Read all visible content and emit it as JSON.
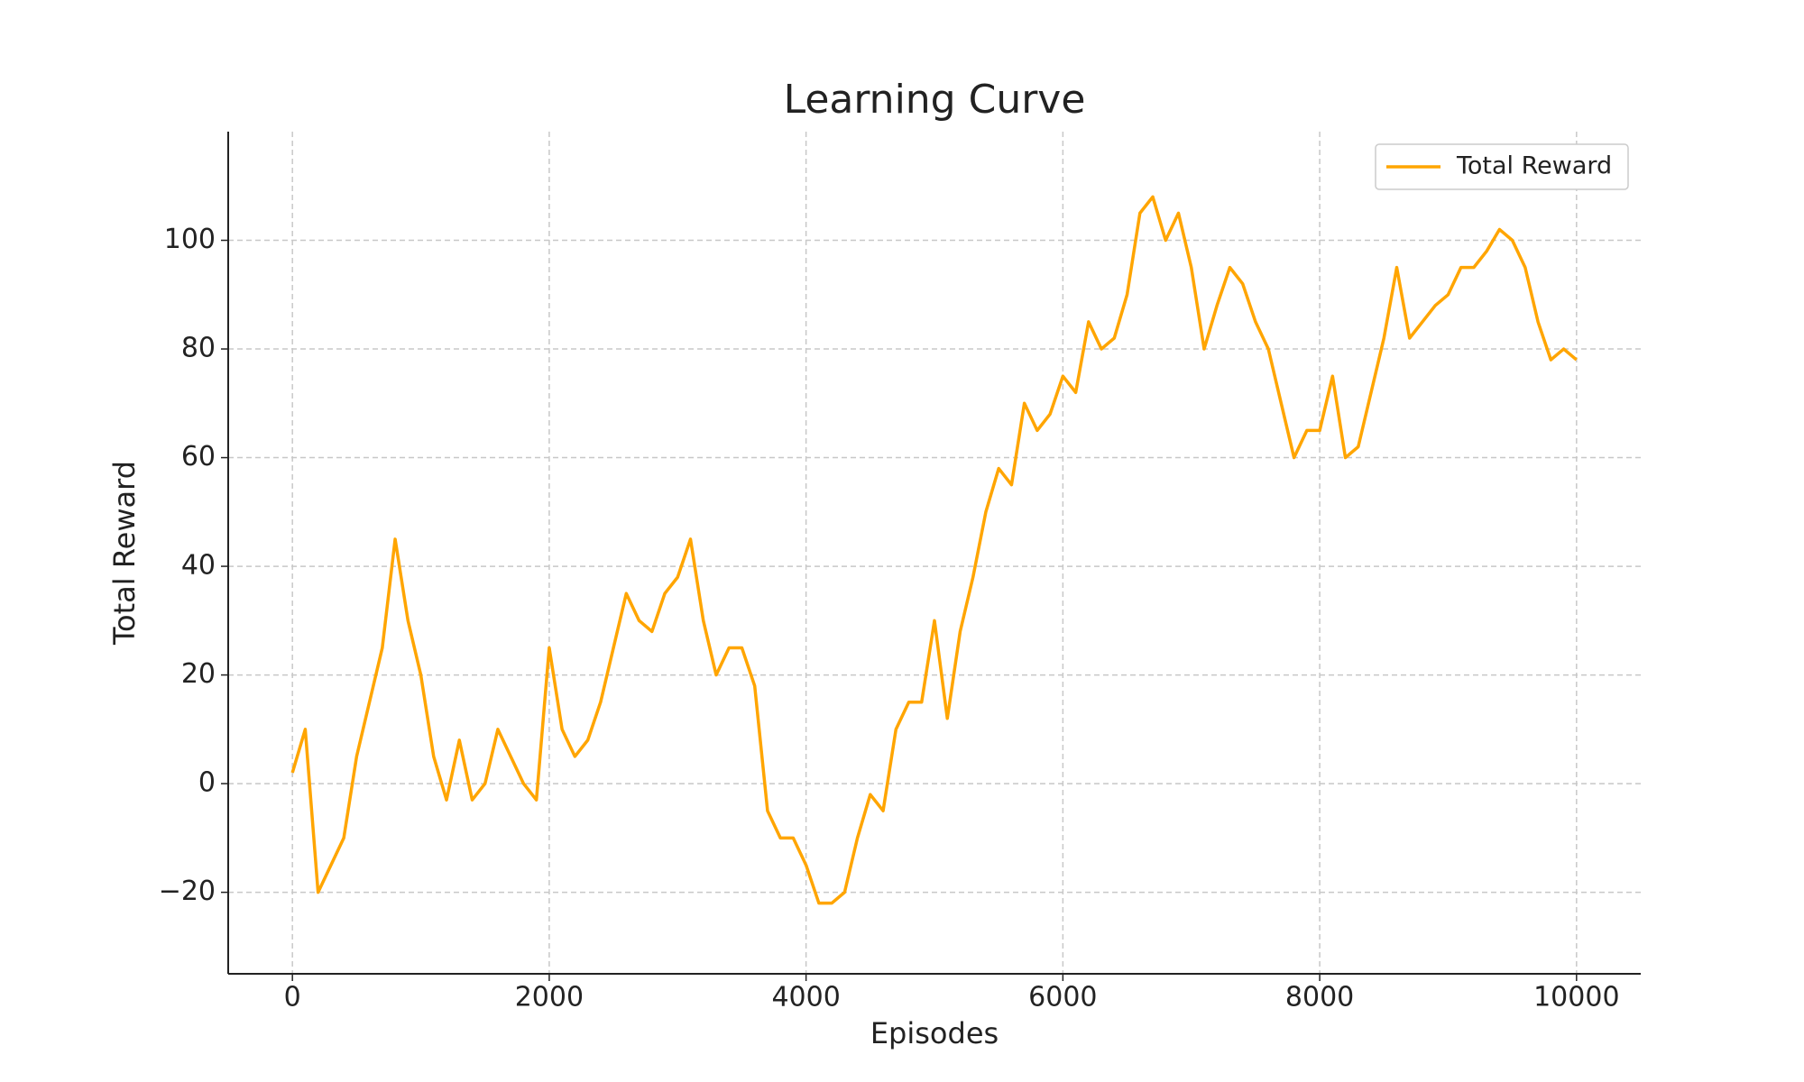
{
  "chart_data": {
    "type": "line",
    "title": "Learning Curve",
    "x_label": "Episodes",
    "y_label": "Total Reward",
    "x": [
      0,
      100,
      200,
      300,
      400,
      500,
      600,
      700,
      800,
      900,
      1000,
      1100,
      1200,
      1300,
      1400,
      1500,
      1600,
      1700,
      1800,
      1900,
      2000,
      2100,
      2200,
      2300,
      2400,
      2500,
      2600,
      2700,
      2800,
      2900,
      3000,
      3100,
      3200,
      3300,
      3400,
      3500,
      3600,
      3700,
      3800,
      3900,
      4000,
      4100,
      4200,
      4300,
      4400,
      4500,
      4600,
      4700,
      4800,
      4900,
      5000,
      5100,
      5200,
      5300,
      5400,
      5500,
      5600,
      5700,
      5800,
      5900,
      6000,
      6100,
      6200,
      6300,
      6400,
      6500,
      6600,
      6700,
      6800,
      6900,
      7000,
      7100,
      7200,
      7300,
      7400,
      7500,
      7600,
      7700,
      7800,
      7900,
      8000,
      8100,
      8200,
      8300,
      8400,
      8500,
      8600,
      8700,
      8800,
      8900,
      9000,
      9100,
      9200,
      9300,
      9400,
      9500,
      9600,
      9700,
      9800,
      9900,
      10000
    ],
    "series": [
      {
        "name": "Total Reward",
        "color": "#ffa500",
        "values": [
          2,
          10,
          -20,
          -15,
          -10,
          5,
          15,
          25,
          45,
          30,
          20,
          5,
          -3,
          8,
          -3,
          0,
          10,
          5,
          0,
          -3,
          25,
          10,
          5,
          8,
          15,
          25,
          35,
          30,
          28,
          35,
          38,
          45,
          30,
          20,
          25,
          25,
          18,
          -5,
          -10,
          -10,
          -15,
          -22,
          -22,
          -20,
          -10,
          -2,
          -5,
          10,
          15,
          15,
          30,
          12,
          28,
          38,
          50,
          58,
          55,
          70,
          65,
          68,
          75,
          72,
          85,
          80,
          82,
          90,
          105,
          108,
          100,
          105,
          95,
          80,
          88,
          95,
          92,
          85,
          80,
          70,
          60,
          65,
          65,
          75,
          60,
          62,
          72,
          82,
          95,
          82,
          85,
          88,
          90,
          95,
          95,
          98,
          102,
          100,
          95,
          85,
          78,
          80,
          78
        ]
      }
    ],
    "xlim": [
      -500,
      10500
    ],
    "ylim": [
      -35,
      120
    ],
    "xticks": [
      0,
      2000,
      4000,
      6000,
      8000,
      10000
    ],
    "yticks": [
      {
        "value": -20,
        "label": "−20"
      },
      0,
      20,
      40,
      60,
      80,
      100
    ],
    "grid": true,
    "legend": "upper right"
  }
}
